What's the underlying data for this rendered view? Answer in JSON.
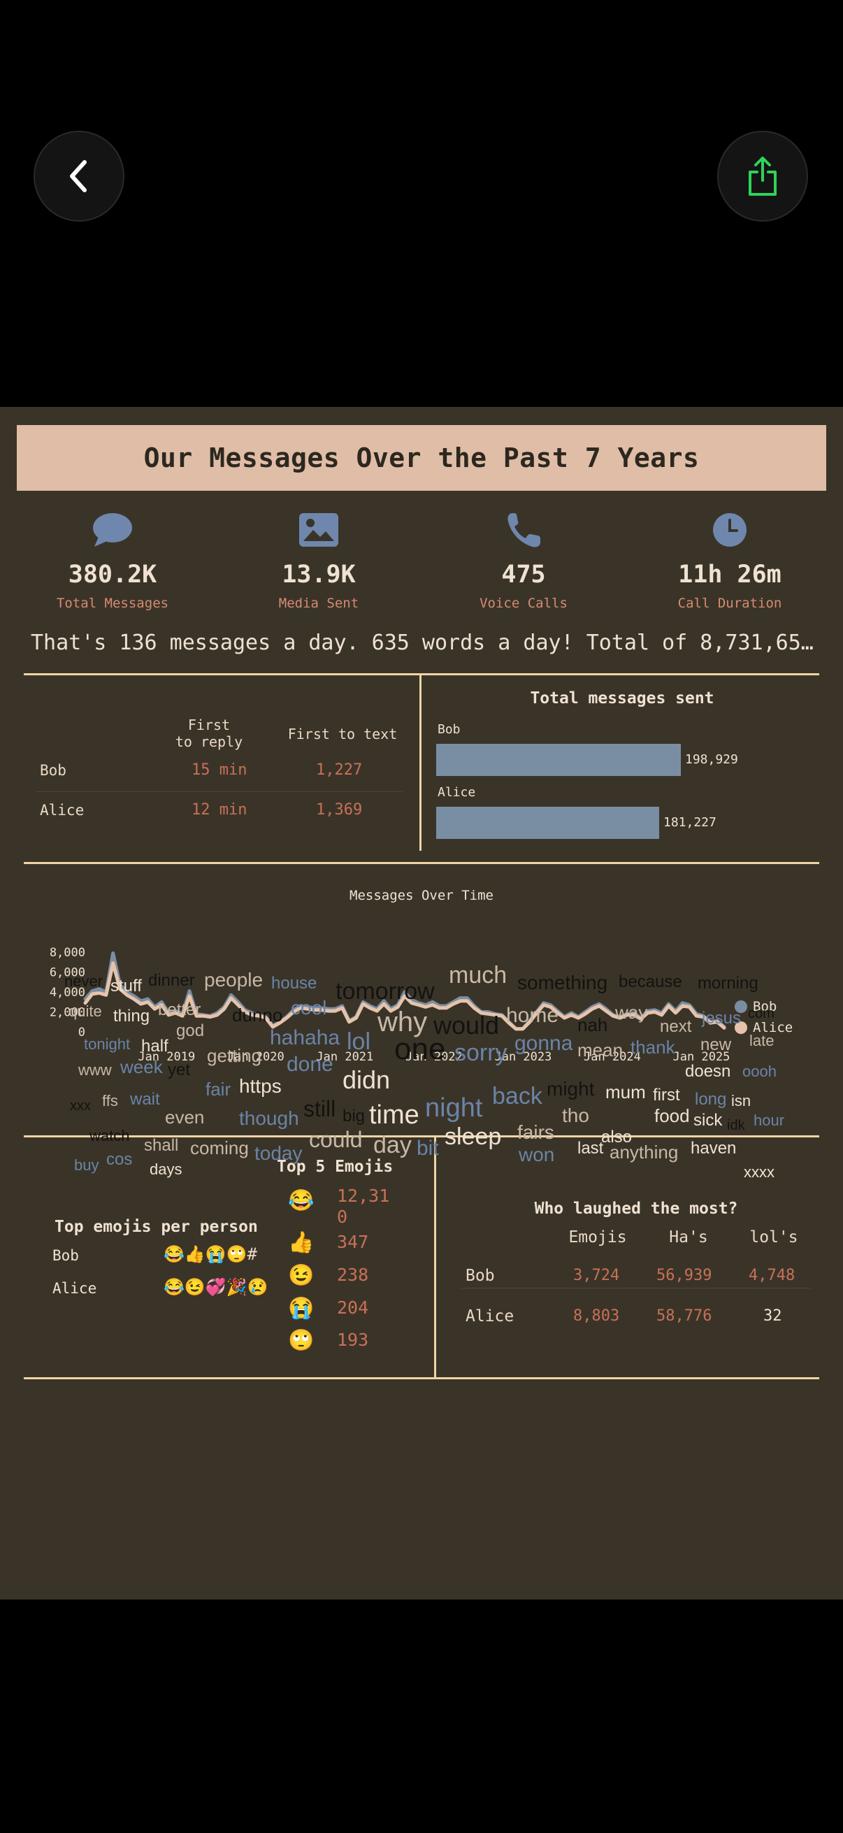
{
  "nav": {
    "back_icon": "chevron-left-icon",
    "share_icon": "share-icon",
    "share_color": "#2fd35a"
  },
  "report": {
    "title": "Our Messages Over the Past 7 Years",
    "stats": [
      {
        "icon": "chat-bubble-icon",
        "value": "380.2K",
        "label": "Total Messages"
      },
      {
        "icon": "image-icon",
        "value": "13.9K",
        "label": "Media Sent"
      },
      {
        "icon": "phone-icon",
        "value": "475",
        "label": "Voice Calls"
      },
      {
        "icon": "clock-icon",
        "value": "11h 26m",
        "label": "Call Duration"
      }
    ],
    "summary": "That's 136 messages a day. 635 words a day! Total of 8,731,65…",
    "reply_table": {
      "col_first_reply": "First\nto reply",
      "col_first_reply_l1": "First",
      "col_first_reply_l2": "to reply",
      "col_first_text": "First to text",
      "rows": [
        {
          "name": "Bob",
          "reply": "15 min",
          "text": "1,227"
        },
        {
          "name": "Alice",
          "reply": "12 min",
          "text": "1,369"
        }
      ]
    },
    "total_sent": {
      "title": "Total messages sent",
      "bars": [
        {
          "name": "Bob",
          "value": 198929,
          "label": "198,929"
        },
        {
          "name": "Alice",
          "value": 181227,
          "label": "181,227"
        }
      ]
    },
    "top_emojis": {
      "title": "Top 5 Emojis",
      "per_person_title": "Top emojis per person",
      "per_person": [
        {
          "name": "Bob",
          "emojis": "😂👍😭🙄#"
        },
        {
          "name": "Alice",
          "emojis": "😂😉💞🎉😢"
        }
      ],
      "ranking": [
        {
          "emoji": "😂",
          "count_l1": "12,31",
          "count_l2": "0"
        },
        {
          "emoji": "👍",
          "count_l1": "347",
          "count_l2": ""
        },
        {
          "emoji": "😉",
          "count_l1": "238",
          "count_l2": ""
        },
        {
          "emoji": "😭",
          "count_l1": "204",
          "count_l2": ""
        },
        {
          "emoji": "🙄",
          "count_l1": "193",
          "count_l2": ""
        }
      ]
    },
    "laughed": {
      "title": "Who laughed the most?",
      "cols": [
        "Emojis",
        "Ha's",
        "lol's"
      ],
      "rows": [
        {
          "name": "Bob",
          "emojis": "3,724",
          "has": "56,939",
          "lols": "4,748"
        },
        {
          "name": "Alice",
          "emojis": "8,803",
          "has": "58,776",
          "lols": "32"
        }
      ]
    },
    "word_cloud": [
      {
        "w": "never",
        "c": "#141210"
      },
      {
        "w": "stuff",
        "c": "#efe2d2"
      },
      {
        "w": "dinner",
        "c": "#141210"
      },
      {
        "w": "people",
        "c": "#c9b8a6"
      },
      {
        "w": "house",
        "c": "#6a84a8"
      },
      {
        "w": "much",
        "c": "#c9b8a6"
      },
      {
        "w": "something",
        "c": "#141210"
      },
      {
        "w": "because",
        "c": "#141210"
      },
      {
        "w": "morning",
        "c": "#141210"
      },
      {
        "w": "quite",
        "c": "#c9b8a6"
      },
      {
        "w": "thing",
        "c": "#efe2d2"
      },
      {
        "w": "better",
        "c": "#c9b8a6"
      },
      {
        "w": "dunno",
        "c": "#141210"
      },
      {
        "w": "cool",
        "c": "#6a84a8"
      },
      {
        "w": "tomorrow",
        "c": "#141210"
      },
      {
        "w": "home",
        "c": "#c9b8a6"
      },
      {
        "w": "way",
        "c": "#c9b8a6"
      },
      {
        "w": "jesus",
        "c": "#6a84a8"
      },
      {
        "w": "com",
        "c": "#141210"
      },
      {
        "w": "god",
        "c": "#c9b8a6"
      },
      {
        "w": "nah",
        "c": "#141210"
      },
      {
        "w": "next",
        "c": "#c9b8a6"
      },
      {
        "w": "tonight",
        "c": "#6a84a8"
      },
      {
        "w": "half",
        "c": "#efe2d2"
      },
      {
        "w": "hahaha",
        "c": "#6a84a8"
      },
      {
        "w": "why",
        "c": "#c9b8a6"
      },
      {
        "w": "would",
        "c": "#141210"
      },
      {
        "w": "new",
        "c": "#c9b8a6"
      },
      {
        "w": "late",
        "c": "#c9b8a6"
      },
      {
        "w": "getting",
        "c": "#c9b8a6"
      },
      {
        "w": "lol",
        "c": "#6a84a8"
      },
      {
        "w": "gonna",
        "c": "#6a84a8"
      },
      {
        "w": "mean",
        "c": "#c9b8a6"
      },
      {
        "w": "thank",
        "c": "#6a84a8"
      },
      {
        "w": "www",
        "c": "#c9b8a6"
      },
      {
        "w": "week",
        "c": "#6a84a8"
      },
      {
        "w": "yet",
        "c": "#141210"
      },
      {
        "w": "done",
        "c": "#6a84a8"
      },
      {
        "w": "one",
        "c": "#141210"
      },
      {
        "w": "sorry",
        "c": "#6a84a8"
      },
      {
        "w": "doesn",
        "c": "#efe2d2"
      },
      {
        "w": "oooh",
        "c": "#6a84a8"
      },
      {
        "w": "fair",
        "c": "#6a84a8"
      },
      {
        "w": "https",
        "c": "#efe2d2"
      },
      {
        "w": "didn",
        "c": "#efe2d2"
      },
      {
        "w": "might",
        "c": "#141210"
      },
      {
        "w": "mum",
        "c": "#efe2d2"
      },
      {
        "w": "first",
        "c": "#efe2d2"
      },
      {
        "w": "xxx",
        "c": "#141210"
      },
      {
        "w": "ffs",
        "c": "#c9b8a6"
      },
      {
        "w": "wait",
        "c": "#6a84a8"
      },
      {
        "w": "back",
        "c": "#6a84a8"
      },
      {
        "w": "long",
        "c": "#6a84a8"
      },
      {
        "w": "isn",
        "c": "#efe2d2"
      },
      {
        "w": "even",
        "c": "#c9b8a6"
      },
      {
        "w": "though",
        "c": "#6a84a8"
      },
      {
        "w": "still",
        "c": "#141210"
      },
      {
        "w": "big",
        "c": "#141210"
      },
      {
        "w": "time",
        "c": "#efe2d2"
      },
      {
        "w": "night",
        "c": "#6a84a8"
      },
      {
        "w": "tho",
        "c": "#c9b8a6"
      },
      {
        "w": "food",
        "c": "#efe2d2"
      },
      {
        "w": "sick",
        "c": "#efe2d2"
      },
      {
        "w": "idk",
        "c": "#141210"
      },
      {
        "w": "hour",
        "c": "#6a84a8"
      },
      {
        "w": "watch",
        "c": "#141210"
      },
      {
        "w": "fairs",
        "c": "#c9b8a6"
      },
      {
        "w": "also",
        "c": "#efe2d2"
      },
      {
        "w": "shall",
        "c": "#c9b8a6"
      },
      {
        "w": "coming",
        "c": "#c9b8a6"
      },
      {
        "w": "could",
        "c": "#c9b8a6"
      },
      {
        "w": "day",
        "c": "#c9b8a6"
      },
      {
        "w": "bit",
        "c": "#6a84a8"
      },
      {
        "w": "sleep",
        "c": "#efe2d2"
      },
      {
        "w": "last",
        "c": "#efe2d2"
      },
      {
        "w": "anything",
        "c": "#c9b8a6"
      },
      {
        "w": "haven",
        "c": "#efe2d2"
      },
      {
        "w": "buy",
        "c": "#6a84a8"
      },
      {
        "w": "cos",
        "c": "#6a84a8"
      },
      {
        "w": "days",
        "c": "#efe2d2"
      },
      {
        "w": "today",
        "c": "#6a84a8"
      },
      {
        "w": "won",
        "c": "#6a84a8"
      },
      {
        "w": "xxxx",
        "c": "#efe2d2"
      }
    ]
  },
  "chart_data": {
    "type": "line",
    "title": "Messages Over Time",
    "xlabel": "",
    "ylabel": "",
    "ylim": [
      0,
      8000
    ],
    "yticks": [
      "0",
      "2,000",
      "4,000",
      "6,000",
      "8,000"
    ],
    "xticks": [
      "Jan 2019",
      "Jan 2020",
      "Jan 2021",
      "Jan 2022",
      "Jan 2023",
      "Jan 2024",
      "Jan 2025"
    ],
    "x_start": "2018-03",
    "x_end": "2025-05",
    "legend": "right",
    "series": [
      {
        "name": "Bob",
        "color": "#7a8ea3",
        "values": [
          3300,
          4100,
          4300,
          4000,
          7900,
          4700,
          4000,
          3600,
          3100,
          3300,
          2500,
          3000,
          1900,
          2100,
          1800,
          4100,
          1800,
          1700,
          1600,
          1900,
          2500,
          3700,
          3000,
          2200,
          1900,
          1700,
          1500,
          600,
          1000,
          1500,
          2200,
          2600,
          2500,
          2400,
          2400,
          2300,
          2300,
          2600,
          1100,
          1500,
          3000,
          2600,
          2300,
          3100,
          2300,
          2700,
          4000,
          3200,
          2900,
          2700,
          3000,
          2600,
          2600,
          3000,
          3400,
          3400,
          2600,
          2000,
          2000,
          1800,
          1700,
          1000,
          300,
          300,
          1100,
          2000,
          2900,
          2700,
          2100,
          1500,
          1900,
          1500,
          2000,
          2500,
          2800,
          2300,
          1700,
          1500,
          1800,
          1900,
          1400,
          2100,
          2200,
          1900,
          2800,
          2100,
          2900,
          2700,
          1800,
          1600,
          1000,
          1100,
          500
        ]
      },
      {
        "name": "Alice",
        "color": "#e6c3ab",
        "values": [
          2900,
          3800,
          3900,
          3700,
          6900,
          4300,
          3700,
          3300,
          2800,
          3000,
          2300,
          2700,
          1700,
          1900,
          1600,
          3600,
          1600,
          1600,
          1500,
          1700,
          2300,
          3400,
          2700,
          2000,
          1700,
          1600,
          1400,
          500,
          900,
          1400,
          2000,
          2400,
          2300,
          2200,
          2200,
          2100,
          2100,
          2400,
          1000,
          1400,
          2800,
          2400,
          2100,
          2800,
          2100,
          2500,
          3600,
          2900,
          2700,
          2500,
          2700,
          2400,
          2400,
          2800,
          3100,
          3100,
          2400,
          1900,
          1800,
          1700,
          1600,
          900,
          300,
          300,
          1000,
          1900,
          2700,
          2500,
          1900,
          1400,
          1700,
          1400,
          1800,
          2300,
          2600,
          2100,
          1600,
          1400,
          1700,
          1700,
          1300,
          1900,
          2000,
          1700,
          2600,
          1900,
          2600,
          2500,
          1600,
          1500,
          900,
          1000,
          400
        ]
      }
    ]
  }
}
